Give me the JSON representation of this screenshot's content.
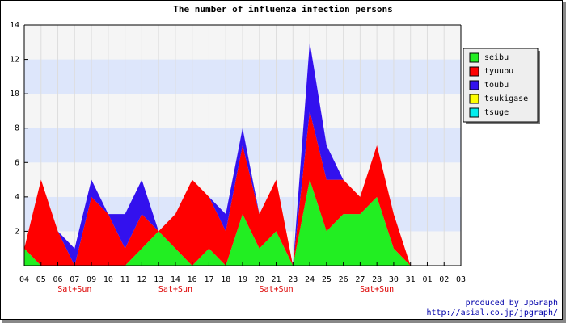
{
  "chart_data": {
    "type": "area",
    "stacked": true,
    "title": "The number of influenza infection persons",
    "categories": [
      "04",
      "05",
      "06",
      "07",
      "09",
      "10",
      "11",
      "12",
      "13",
      "14",
      "16",
      "17",
      "18",
      "19",
      "20",
      "21",
      "23",
      "24",
      "25",
      "26",
      "27",
      "28",
      "30",
      "31",
      "01",
      "02",
      "03"
    ],
    "category_notes": [
      null,
      null,
      null,
      "Sat+Sun",
      null,
      null,
      null,
      null,
      null,
      "Sat+Sun",
      null,
      null,
      null,
      null,
      null,
      "Sat+Sun",
      null,
      null,
      null,
      null,
      null,
      "Sat+Sun",
      null,
      null,
      null,
      null,
      null
    ],
    "series": [
      {
        "name": "seibu",
        "color": "#22ee22",
        "values": [
          1,
          0,
          0,
          0,
          0,
          0,
          0,
          1,
          2,
          1,
          0,
          1,
          0,
          3,
          1,
          2,
          0,
          5,
          2,
          3,
          3,
          4,
          1,
          0,
          null,
          null,
          null
        ]
      },
      {
        "name": "tyuubu",
        "color": "#ff0000",
        "values": [
          0,
          5,
          2,
          0,
          4,
          3,
          1,
          2,
          0,
          2,
          5,
          3,
          2,
          4,
          2,
          3,
          0,
          4,
          3,
          2,
          1,
          3,
          2,
          0,
          null,
          null,
          null
        ]
      },
      {
        "name": "toubu",
        "color": "#3311ee",
        "values": [
          0,
          0,
          0,
          1,
          1,
          0,
          2,
          2,
          0,
          0,
          0,
          0,
          1,
          1,
          0,
          0,
          0,
          4,
          2,
          0,
          0,
          0,
          0,
          0,
          null,
          null,
          null
        ]
      },
      {
        "name": "tsukigase",
        "color": "#ffff00",
        "values": [
          0,
          0,
          0,
          0,
          0,
          0,
          0,
          0,
          0,
          0,
          0,
          0,
          0,
          0,
          0,
          0,
          0,
          0,
          0,
          0,
          0,
          0,
          0,
          0,
          null,
          null,
          null
        ]
      },
      {
        "name": "tsuge",
        "color": "#00eeee",
        "values": [
          0,
          0,
          0,
          0,
          0,
          0,
          0,
          0,
          0,
          0,
          0,
          0,
          0,
          0,
          0,
          0,
          0,
          0,
          0,
          0,
          0,
          0,
          0,
          0,
          null,
          null,
          null
        ]
      }
    ],
    "ylim": [
      0,
      14
    ],
    "yticks": [
      2,
      4,
      6,
      8,
      10,
      12,
      14
    ],
    "band_colors": [
      "#f5f5f5",
      "#dde6fb"
    ],
    "legend": "top-right",
    "footer": [
      "produced by JpGraph",
      "http://asial.co.jp/jpgraph/"
    ]
  }
}
